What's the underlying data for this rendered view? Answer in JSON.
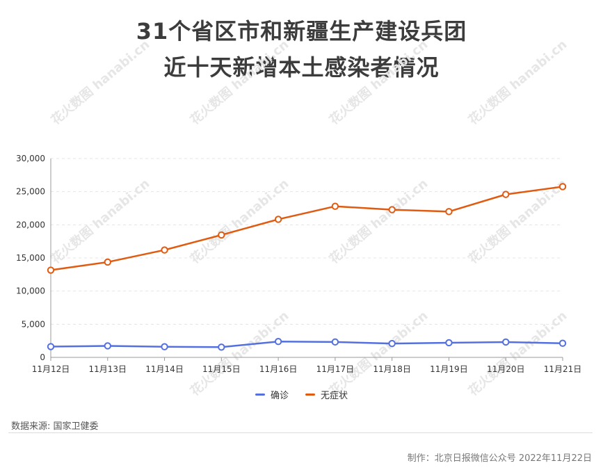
{
  "title": {
    "line1": "31个省区市和新疆生产建设兵团",
    "line2": "近十天新增本土感染者情况"
  },
  "watermark": "花火数图 hanabi.cn",
  "source": "数据来源: 国家卫健委",
  "credit": "制作：北京日报微信公众号 2022年11月22日",
  "chart_data": {
    "type": "line",
    "categories": [
      "11月12日",
      "11月13日",
      "11月14日",
      "11月15日",
      "11月16日",
      "11月17日",
      "11月18日",
      "11月19日",
      "11月20日",
      "11月21日"
    ],
    "series": [
      {
        "name": "确诊",
        "color": "#5470e0",
        "values": [
          1624,
          1733,
          1601,
          1544,
          2388,
          2321,
          2084,
          2207,
          2311,
          2129
        ]
      },
      {
        "name": "无症状",
        "color": "#e05a10",
        "values": [
          13163,
          14376,
          16197,
          18469,
          20826,
          22792,
          22281,
          21995,
          24584,
          25758
        ]
      }
    ],
    "ylim": [
      0,
      30000
    ],
    "yticks": [
      0,
      5000,
      10000,
      15000,
      20000,
      25000,
      30000
    ],
    "ytick_labels": [
      "0",
      "5,000",
      "10,000",
      "15,000",
      "20,000",
      "25,000",
      "30,000"
    ],
    "grid": true,
    "legend": "bottom-center"
  }
}
